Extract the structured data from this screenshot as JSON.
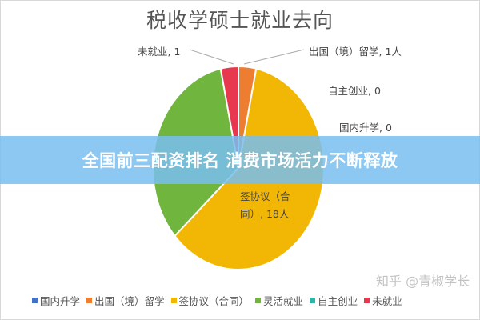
{
  "chart_data": {
    "type": "pie",
    "title": "税收学硕士就业去向",
    "slices": [
      {
        "name": "国内升学",
        "value": 0,
        "color": "#4472c4",
        "label": "国内升学, 0"
      },
      {
        "name": "出国（境）留学",
        "value": 1,
        "color": "#ed7d31",
        "label": "出国（境）留学, 1人"
      },
      {
        "name": "签协议（合同）",
        "value": 18,
        "color": "#f2b705",
        "label": "签协议（合同）, 18人"
      },
      {
        "name": "灵活就业",
        "value": 10,
        "color": "#70b63e",
        "label": ""
      },
      {
        "name": "自主创业",
        "value": 0,
        "color": "#2bb5a8",
        "label": "自主创业, 0"
      },
      {
        "name": "未就业",
        "value": 1,
        "color": "#e8384f",
        "label": "未就业, 1"
      }
    ],
    "legend": [
      "国内升学",
      "出国（境）留学",
      "签协议（合同）",
      "灵活就业",
      "自主创业",
      "未就业"
    ],
    "legend_position": "bottom"
  },
  "banner": {
    "text": "全国前三配资排名 消费市场活力不断释放"
  },
  "watermark": "知乎 @青椒学长"
}
